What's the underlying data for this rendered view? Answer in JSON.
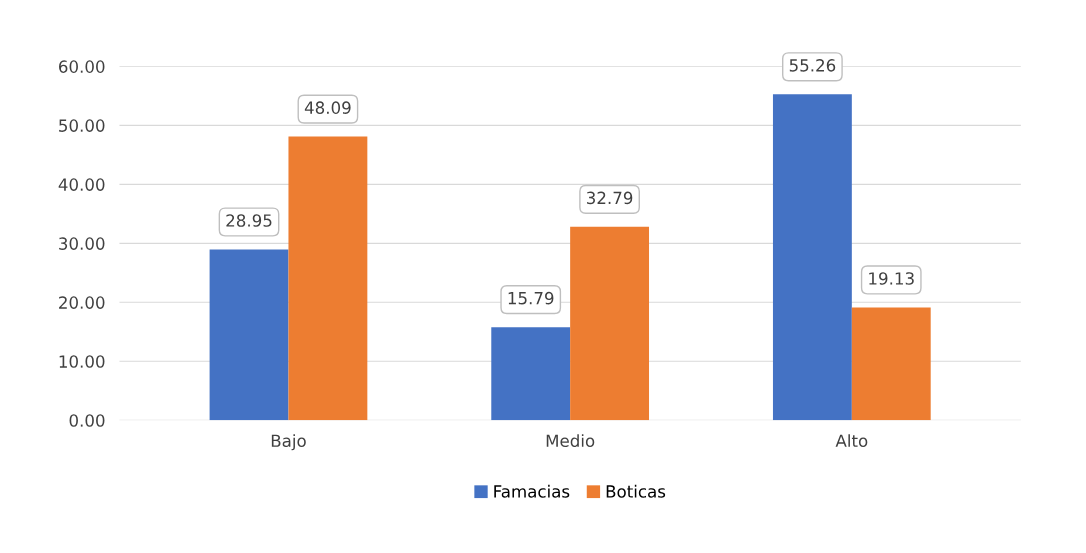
{
  "chart_data": {
    "type": "bar",
    "categories": [
      "Bajo",
      "Medio",
      "Alto"
    ],
    "series": [
      {
        "name": "Famacias",
        "color": "#4472c4",
        "values": [
          28.95,
          15.79,
          55.26
        ]
      },
      {
        "name": "Boticas",
        "color": "#ed7d31",
        "values": [
          48.09,
          32.79,
          19.13
        ]
      }
    ],
    "ylim": [
      0,
      60
    ],
    "yticks": [
      {
        "value": 0,
        "label": "0.00"
      },
      {
        "value": 10,
        "label": "10.00"
      },
      {
        "value": 20,
        "label": "20.00"
      },
      {
        "value": 30,
        "label": "30.00"
      },
      {
        "value": 40,
        "label": "40.00"
      },
      {
        "value": 50,
        "label": "50.00"
      },
      {
        "value": 60,
        "label": "60.00"
      }
    ],
    "grid": "y",
    "legend": "bottom",
    "data_labels": true
  }
}
